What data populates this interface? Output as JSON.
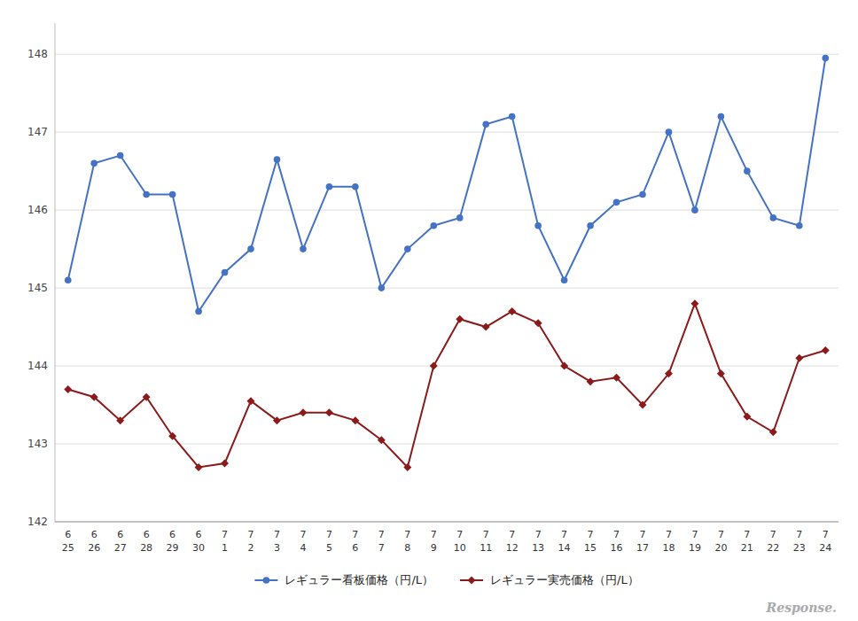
{
  "chart_data": {
    "type": "line",
    "categories": [
      [
        "6",
        "25"
      ],
      [
        "6",
        "26"
      ],
      [
        "6",
        "27"
      ],
      [
        "6",
        "28"
      ],
      [
        "6",
        "29"
      ],
      [
        "6",
        "30"
      ],
      [
        "7",
        "1"
      ],
      [
        "7",
        "2"
      ],
      [
        "7",
        "3"
      ],
      [
        "7",
        "4"
      ],
      [
        "7",
        "5"
      ],
      [
        "7",
        "6"
      ],
      [
        "7",
        "7"
      ],
      [
        "7",
        "8"
      ],
      [
        "7",
        "9"
      ],
      [
        "7",
        "10"
      ],
      [
        "7",
        "11"
      ],
      [
        "7",
        "12"
      ],
      [
        "7",
        "13"
      ],
      [
        "7",
        "14"
      ],
      [
        "7",
        "15"
      ],
      [
        "7",
        "16"
      ],
      [
        "7",
        "17"
      ],
      [
        "7",
        "18"
      ],
      [
        "7",
        "19"
      ],
      [
        "7",
        "20"
      ],
      [
        "7",
        "21"
      ],
      [
        "7",
        "22"
      ],
      [
        "7",
        "23"
      ],
      [
        "7",
        "24"
      ]
    ],
    "series": [
      {
        "name": "レギュラー看板価格（円/L）",
        "color": "#4472C4",
        "marker": "circle",
        "values": [
          145.1,
          146.6,
          146.7,
          146.2,
          146.2,
          144.7,
          145.2,
          145.5,
          146.65,
          145.5,
          146.3,
          146.3,
          145.0,
          145.5,
          145.8,
          145.9,
          147.1,
          147.2,
          145.8,
          145.1,
          145.8,
          146.1,
          146.2,
          147.0,
          146.0,
          147.2,
          146.5,
          145.9,
          145.8,
          147.95
        ]
      },
      {
        "name": "レギュラー実売価格（円/L）",
        "color": "#8B1A1A",
        "marker": "diamond",
        "values": [
          143.7,
          143.6,
          143.3,
          143.6,
          143.1,
          142.7,
          142.75,
          143.55,
          143.3,
          143.4,
          143.4,
          143.3,
          143.05,
          142.7,
          144.0,
          144.6,
          144.5,
          144.7,
          144.55,
          144.0,
          143.8,
          143.85,
          143.5,
          143.9,
          144.8,
          143.9,
          143.35,
          143.15,
          144.1,
          144.2
        ]
      }
    ],
    "ylim": [
      142,
      148.4
    ],
    "yticks": [
      142,
      143,
      144,
      145,
      146,
      147,
      148
    ],
    "grid": true,
    "legend": "bottom",
    "annotations": [
      "Response."
    ]
  }
}
